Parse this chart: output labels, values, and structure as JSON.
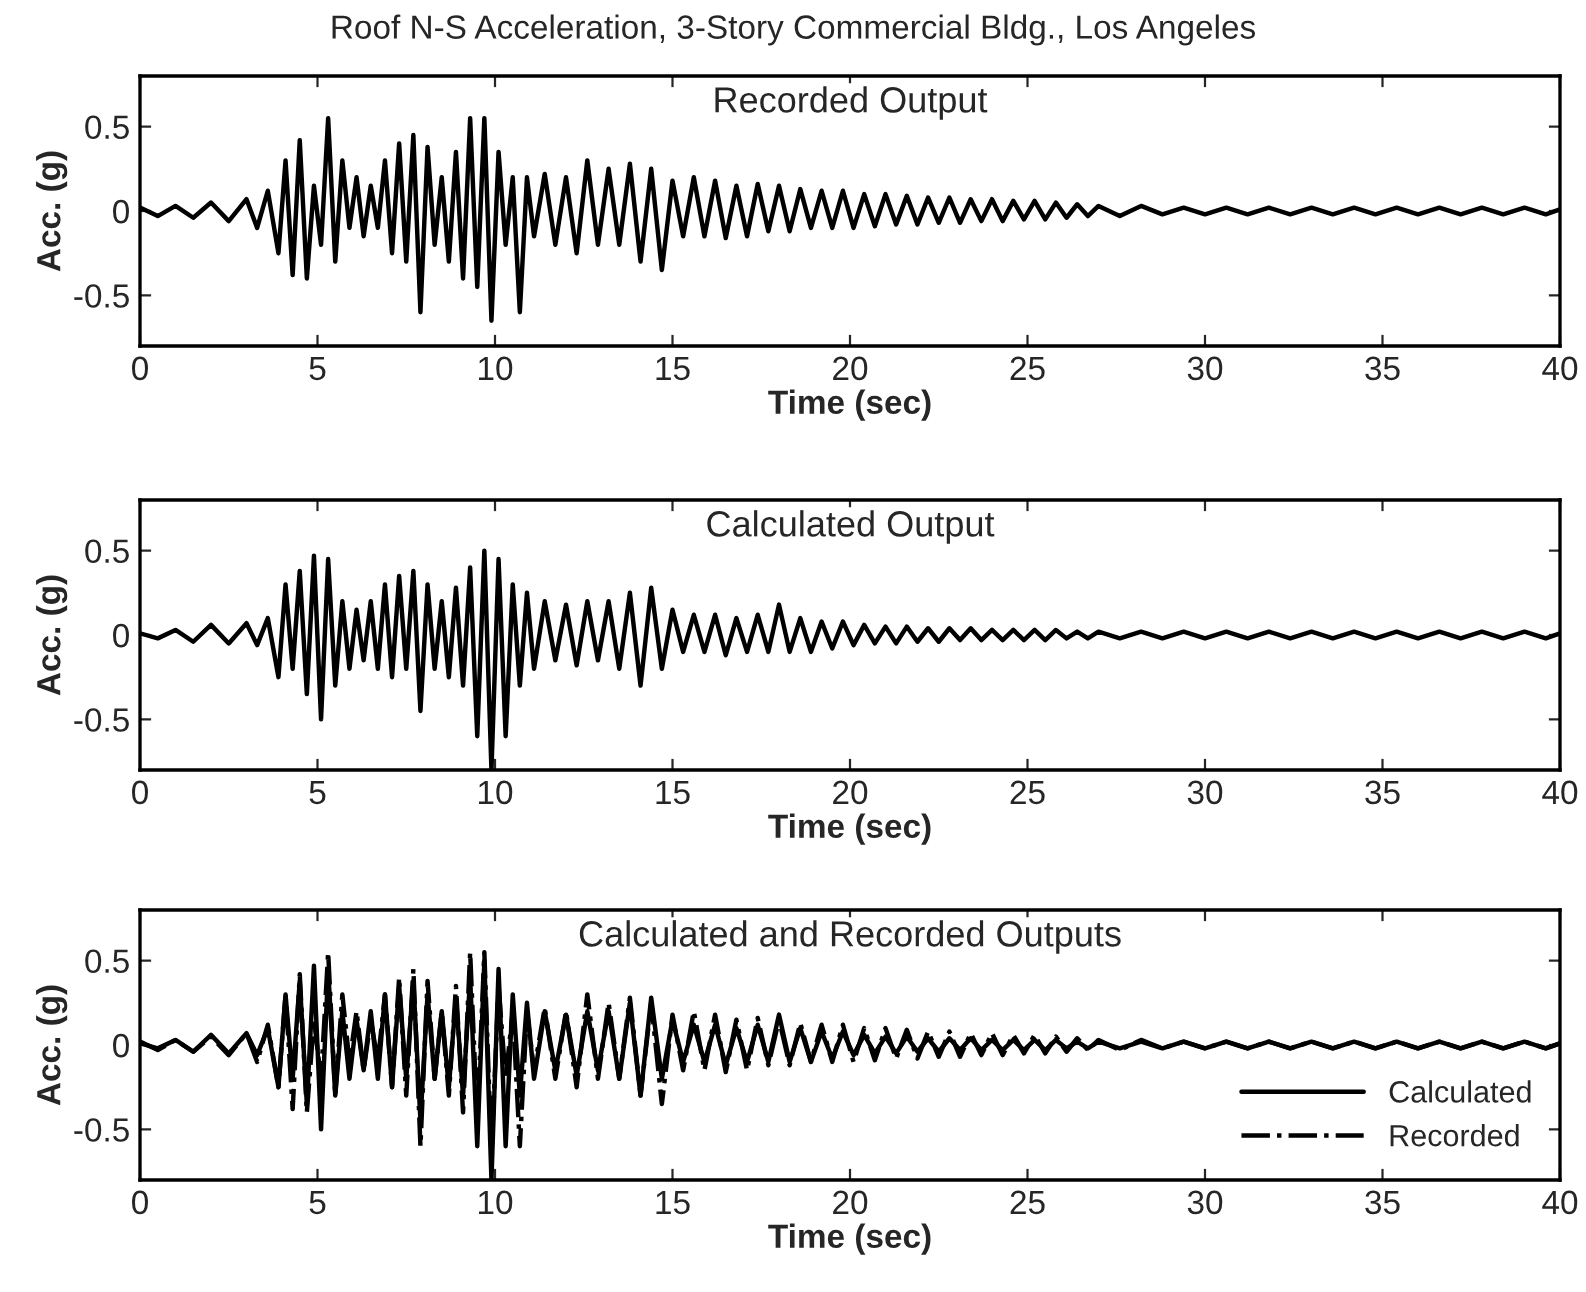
{
  "chart_data": [
    {
      "type": "line",
      "title": "Roof N-S Acceleration, 3-Story Commercial Bldg., Los Angeles",
      "annotations": [
        "Recorded Output"
      ],
      "xlabel": "Time (sec)",
      "ylabel": "Acc. (g)",
      "xlim": [
        0,
        40
      ],
      "xticks": [
        0,
        5,
        10,
        15,
        20,
        25,
        30,
        35,
        40
      ],
      "ylim": [
        -0.8,
        0.8
      ],
      "yticks": [
        -0.5,
        0,
        0.5
      ],
      "grid": false,
      "legend": false,
      "series": [
        {
          "color": "#000000",
          "line_style": "solid",
          "x": [
            0,
            0.5,
            1,
            1.5,
            2,
            2.5,
            3,
            3.3,
            3.6,
            3.9,
            4.1,
            4.3,
            4.5,
            4.7,
            4.9,
            5.1,
            5.3,
            5.5,
            5.7,
            5.9,
            6.1,
            6.3,
            6.5,
            6.7,
            6.9,
            7.1,
            7.3,
            7.5,
            7.7,
            7.9,
            8.1,
            8.3,
            8.5,
            8.7,
            8.9,
            9.1,
            9.3,
            9.5,
            9.7,
            9.9,
            10.1,
            10.3,
            10.5,
            10.7,
            10.9,
            11.1,
            11.4,
            11.7,
            12.0,
            12.3,
            12.6,
            12.9,
            13.2,
            13.5,
            13.8,
            14.1,
            14.4,
            14.7,
            15.0,
            15.3,
            15.6,
            15.9,
            16.2,
            16.5,
            16.8,
            17.1,
            17.4,
            17.7,
            18.0,
            18.3,
            18.6,
            18.9,
            19.2,
            19.5,
            19.8,
            20.1,
            20.4,
            20.7,
            21.0,
            21.3,
            21.6,
            21.9,
            22.2,
            22.5,
            22.8,
            23.1,
            23.4,
            23.7,
            24.0,
            24.3,
            24.6,
            24.9,
            25.2,
            25.5,
            25.8,
            26.1,
            26.4,
            26.7,
            27.0,
            27.6,
            28.2,
            28.8,
            29.4,
            30,
            30.6,
            31.2,
            31.8,
            32.4,
            33,
            33.6,
            34.2,
            34.8,
            35.4,
            36,
            36.6,
            37.2,
            37.8,
            38.4,
            39,
            39.6,
            40
          ],
          "values": [
            0.02,
            -0.03,
            0.03,
            -0.04,
            0.05,
            -0.06,
            0.07,
            -0.1,
            0.12,
            -0.25,
            0.3,
            -0.38,
            0.42,
            -0.4,
            0.15,
            -0.2,
            0.55,
            -0.3,
            0.3,
            -0.1,
            0.2,
            -0.15,
            0.15,
            -0.1,
            0.3,
            -0.25,
            0.4,
            -0.3,
            0.45,
            -0.6,
            0.38,
            -0.2,
            0.2,
            -0.3,
            0.35,
            -0.4,
            0.55,
            -0.45,
            0.55,
            -0.65,
            0.35,
            -0.2,
            0.2,
            -0.6,
            0.2,
            -0.15,
            0.22,
            -0.2,
            0.2,
            -0.25,
            0.3,
            -0.2,
            0.25,
            -0.2,
            0.28,
            -0.3,
            0.25,
            -0.35,
            0.18,
            -0.15,
            0.2,
            -0.15,
            0.18,
            -0.16,
            0.15,
            -0.15,
            0.16,
            -0.12,
            0.15,
            -0.12,
            0.13,
            -0.1,
            0.12,
            -0.1,
            0.12,
            -0.1,
            0.1,
            -0.09,
            0.1,
            -0.08,
            0.09,
            -0.08,
            0.08,
            -0.07,
            0.08,
            -0.07,
            0.07,
            -0.06,
            0.07,
            -0.06,
            0.06,
            -0.05,
            0.06,
            -0.05,
            0.05,
            -0.04,
            0.04,
            -0.03,
            0.03,
            -0.03,
            0.03,
            -0.02,
            0.02,
            -0.02,
            0.02,
            -0.02,
            0.02,
            -0.02,
            0.02,
            -0.02,
            0.02,
            -0.02,
            0.02,
            -0.02,
            0.02,
            -0.02,
            0.02,
            -0.02,
            0.02,
            -0.02,
            0.01
          ]
        }
      ]
    },
    {
      "type": "line",
      "annotations": [
        "Calculated Output"
      ],
      "xlabel": "Time (sec)",
      "ylabel": "Acc. (g)",
      "xlim": [
        0,
        40
      ],
      "xticks": [
        0,
        5,
        10,
        15,
        20,
        25,
        30,
        35,
        40
      ],
      "ylim": [
        -0.8,
        0.8
      ],
      "yticks": [
        -0.5,
        0,
        0.5
      ],
      "grid": false,
      "legend": false,
      "series": [
        {
          "color": "#000000",
          "line_style": "solid",
          "x": [
            0,
            0.5,
            1,
            1.5,
            2,
            2.5,
            3,
            3.3,
            3.6,
            3.9,
            4.1,
            4.3,
            4.5,
            4.7,
            4.9,
            5.1,
            5.3,
            5.5,
            5.7,
            5.9,
            6.1,
            6.3,
            6.5,
            6.7,
            6.9,
            7.1,
            7.3,
            7.5,
            7.7,
            7.9,
            8.1,
            8.3,
            8.5,
            8.7,
            8.9,
            9.1,
            9.3,
            9.5,
            9.7,
            9.9,
            10.1,
            10.3,
            10.5,
            10.7,
            10.9,
            11.1,
            11.4,
            11.7,
            12.0,
            12.3,
            12.6,
            12.9,
            13.2,
            13.5,
            13.8,
            14.1,
            14.4,
            14.7,
            15.0,
            15.3,
            15.6,
            15.9,
            16.2,
            16.5,
            16.8,
            17.1,
            17.4,
            17.7,
            18.0,
            18.3,
            18.6,
            18.9,
            19.2,
            19.5,
            19.8,
            20.1,
            20.4,
            20.7,
            21.0,
            21.3,
            21.6,
            21.9,
            22.2,
            22.5,
            22.8,
            23.1,
            23.4,
            23.7,
            24.0,
            24.3,
            24.6,
            24.9,
            25.2,
            25.5,
            25.8,
            26.1,
            26.4,
            26.7,
            27.0,
            27.6,
            28.2,
            28.8,
            29.4,
            30,
            30.6,
            31.2,
            31.8,
            32.4,
            33,
            33.6,
            34.2,
            34.8,
            35.4,
            36,
            36.6,
            37.2,
            37.8,
            38.4,
            39,
            39.6,
            40
          ],
          "values": [
            0.01,
            -0.02,
            0.03,
            -0.04,
            0.06,
            -0.05,
            0.07,
            -0.06,
            0.1,
            -0.25,
            0.3,
            -0.2,
            0.38,
            -0.35,
            0.47,
            -0.5,
            0.45,
            -0.3,
            0.2,
            -0.2,
            0.15,
            -0.15,
            0.2,
            -0.2,
            0.3,
            -0.25,
            0.35,
            -0.2,
            0.38,
            -0.45,
            0.3,
            -0.2,
            0.2,
            -0.25,
            0.28,
            -0.3,
            0.4,
            -0.6,
            0.5,
            -0.8,
            0.45,
            -0.6,
            0.3,
            -0.3,
            0.25,
            -0.2,
            0.2,
            -0.15,
            0.18,
            -0.18,
            0.2,
            -0.15,
            0.2,
            -0.2,
            0.25,
            -0.3,
            0.28,
            -0.2,
            0.15,
            -0.1,
            0.12,
            -0.1,
            0.12,
            -0.12,
            0.1,
            -0.1,
            0.12,
            -0.1,
            0.18,
            -0.1,
            0.1,
            -0.1,
            0.08,
            -0.08,
            0.08,
            -0.06,
            0.06,
            -0.05,
            0.05,
            -0.05,
            0.05,
            -0.04,
            0.04,
            -0.04,
            0.04,
            -0.03,
            0.04,
            -0.03,
            0.03,
            -0.03,
            0.03,
            -0.03,
            0.03,
            -0.03,
            0.03,
            -0.02,
            0.02,
            -0.02,
            0.02,
            -0.02,
            0.02,
            -0.02,
            0.02,
            -0.02,
            0.02,
            -0.02,
            0.02,
            -0.02,
            0.02,
            -0.02,
            0.02,
            -0.02,
            0.02,
            -0.02,
            0.02,
            -0.02,
            0.02,
            -0.02,
            0.02,
            -0.02,
            0.01
          ]
        }
      ]
    },
    {
      "type": "line",
      "annotations": [
        "Calculated and Recorded Outputs"
      ],
      "xlabel": "Time (sec)",
      "ylabel": "Acc. (g)",
      "xlim": [
        0,
        40
      ],
      "xticks": [
        0,
        5,
        10,
        15,
        20,
        25,
        30,
        35,
        40
      ],
      "ylim": [
        -0.8,
        0.8
      ],
      "yticks": [
        -0.5,
        0,
        0.5
      ],
      "grid": false,
      "legend": "bottom right",
      "series": [
        {
          "name": "Calculated",
          "color": "#000000",
          "line_style": "solid",
          "x": [
            0,
            0.5,
            1,
            1.5,
            2,
            2.5,
            3,
            3.3,
            3.6,
            3.9,
            4.1,
            4.3,
            4.5,
            4.7,
            4.9,
            5.1,
            5.3,
            5.5,
            5.7,
            5.9,
            6.1,
            6.3,
            6.5,
            6.7,
            6.9,
            7.1,
            7.3,
            7.5,
            7.7,
            7.9,
            8.1,
            8.3,
            8.5,
            8.7,
            8.9,
            9.1,
            9.3,
            9.5,
            9.7,
            9.9,
            10.1,
            10.3,
            10.5,
            10.7,
            10.9,
            11.1,
            11.4,
            11.7,
            12.0,
            12.3,
            12.6,
            12.9,
            13.2,
            13.5,
            13.8,
            14.1,
            14.4,
            14.7,
            15.0,
            15.3,
            15.6,
            15.9,
            16.2,
            16.5,
            16.8,
            17.1,
            17.4,
            17.7,
            18.0,
            18.3,
            18.6,
            18.9,
            19.2,
            19.5,
            19.8,
            20.1,
            20.4,
            20.7,
            21.0,
            21.3,
            21.6,
            21.9,
            22.2,
            22.5,
            22.8,
            23.1,
            23.4,
            23.7,
            24.0,
            24.3,
            24.6,
            24.9,
            25.2,
            25.5,
            25.8,
            26.1,
            26.4,
            26.7,
            27.0,
            27.6,
            28.2,
            28.8,
            29.4,
            30,
            30.6,
            31.2,
            31.8,
            32.4,
            33,
            33.6,
            34.2,
            34.8,
            35.4,
            36,
            36.6,
            37.2,
            37.8,
            38.4,
            39,
            39.6,
            40
          ],
          "values": [
            0.01,
            -0.02,
            0.03,
            -0.04,
            0.06,
            -0.05,
            0.07,
            -0.06,
            0.1,
            -0.25,
            0.3,
            -0.2,
            0.38,
            -0.35,
            0.47,
            -0.5,
            0.45,
            -0.3,
            0.2,
            -0.2,
            0.15,
            -0.15,
            0.2,
            -0.2,
            0.3,
            -0.25,
            0.35,
            -0.2,
            0.38,
            -0.45,
            0.3,
            -0.2,
            0.2,
            -0.25,
            0.28,
            -0.3,
            0.4,
            -0.6,
            0.5,
            -0.8,
            0.45,
            -0.6,
            0.3,
            -0.3,
            0.25,
            -0.2,
            0.2,
            -0.15,
            0.18,
            -0.18,
            0.2,
            -0.15,
            0.2,
            -0.2,
            0.25,
            -0.3,
            0.28,
            -0.2,
            0.15,
            -0.1,
            0.12,
            -0.1,
            0.12,
            -0.12,
            0.1,
            -0.1,
            0.12,
            -0.1,
            0.18,
            -0.1,
            0.1,
            -0.1,
            0.08,
            -0.08,
            0.08,
            -0.06,
            0.06,
            -0.05,
            0.05,
            -0.05,
            0.05,
            -0.04,
            0.04,
            -0.04,
            0.04,
            -0.03,
            0.04,
            -0.03,
            0.03,
            -0.03,
            0.03,
            -0.03,
            0.03,
            -0.03,
            0.03,
            -0.02,
            0.02,
            -0.02,
            0.02,
            -0.02,
            0.02,
            -0.02,
            0.02,
            -0.02,
            0.02,
            -0.02,
            0.02,
            -0.02,
            0.02,
            -0.02,
            0.02,
            -0.02,
            0.02,
            -0.02,
            0.02,
            -0.02,
            0.02,
            -0.02,
            0.02,
            -0.02,
            0.01
          ]
        },
        {
          "name": "Recorded",
          "color": "#000000",
          "line_style": "dashdot",
          "x": [
            0,
            0.5,
            1,
            1.5,
            2,
            2.5,
            3,
            3.3,
            3.6,
            3.9,
            4.1,
            4.3,
            4.5,
            4.7,
            4.9,
            5.1,
            5.3,
            5.5,
            5.7,
            5.9,
            6.1,
            6.3,
            6.5,
            6.7,
            6.9,
            7.1,
            7.3,
            7.5,
            7.7,
            7.9,
            8.1,
            8.3,
            8.5,
            8.7,
            8.9,
            9.1,
            9.3,
            9.5,
            9.7,
            9.9,
            10.1,
            10.3,
            10.5,
            10.7,
            10.9,
            11.1,
            11.4,
            11.7,
            12.0,
            12.3,
            12.6,
            12.9,
            13.2,
            13.5,
            13.8,
            14.1,
            14.4,
            14.7,
            15.0,
            15.3,
            15.6,
            15.9,
            16.2,
            16.5,
            16.8,
            17.1,
            17.4,
            17.7,
            18.0,
            18.3,
            18.6,
            18.9,
            19.2,
            19.5,
            19.8,
            20.1,
            20.4,
            20.7,
            21.0,
            21.3,
            21.6,
            21.9,
            22.2,
            22.5,
            22.8,
            23.1,
            23.4,
            23.7,
            24.0,
            24.3,
            24.6,
            24.9,
            25.2,
            25.5,
            25.8,
            26.1,
            26.4,
            26.7,
            27.0,
            27.6,
            28.2,
            28.8,
            29.4,
            30,
            30.6,
            31.2,
            31.8,
            32.4,
            33,
            33.6,
            34.2,
            34.8,
            35.4,
            36,
            36.6,
            37.2,
            37.8,
            38.4,
            39,
            39.6,
            40
          ],
          "values": [
            0.02,
            -0.03,
            0.03,
            -0.04,
            0.05,
            -0.06,
            0.07,
            -0.1,
            0.12,
            -0.25,
            0.3,
            -0.38,
            0.42,
            -0.4,
            0.15,
            -0.2,
            0.55,
            -0.3,
            0.3,
            -0.1,
            0.2,
            -0.15,
            0.15,
            -0.1,
            0.3,
            -0.25,
            0.4,
            -0.3,
            0.45,
            -0.6,
            0.38,
            -0.2,
            0.2,
            -0.3,
            0.35,
            -0.4,
            0.55,
            -0.45,
            0.55,
            -0.65,
            0.35,
            -0.2,
            0.2,
            -0.6,
            0.2,
            -0.15,
            0.22,
            -0.2,
            0.2,
            -0.25,
            0.3,
            -0.2,
            0.25,
            -0.2,
            0.28,
            -0.3,
            0.25,
            -0.35,
            0.18,
            -0.15,
            0.2,
            -0.15,
            0.18,
            -0.16,
            0.15,
            -0.15,
            0.16,
            -0.12,
            0.15,
            -0.12,
            0.13,
            -0.1,
            0.12,
            -0.1,
            0.12,
            -0.1,
            0.1,
            -0.09,
            0.1,
            -0.08,
            0.09,
            -0.08,
            0.08,
            -0.07,
            0.08,
            -0.07,
            0.07,
            -0.06,
            0.07,
            -0.06,
            0.06,
            -0.05,
            0.06,
            -0.05,
            0.05,
            -0.04,
            0.04,
            -0.03,
            0.03,
            -0.03,
            0.03,
            -0.02,
            0.02,
            -0.02,
            0.02,
            -0.02,
            0.02,
            -0.02,
            0.02,
            -0.02,
            0.02,
            -0.02,
            0.02,
            -0.02,
            0.02,
            -0.02,
            0.02,
            -0.02,
            0.02,
            -0.02,
            0.01
          ]
        }
      ]
    }
  ]
}
